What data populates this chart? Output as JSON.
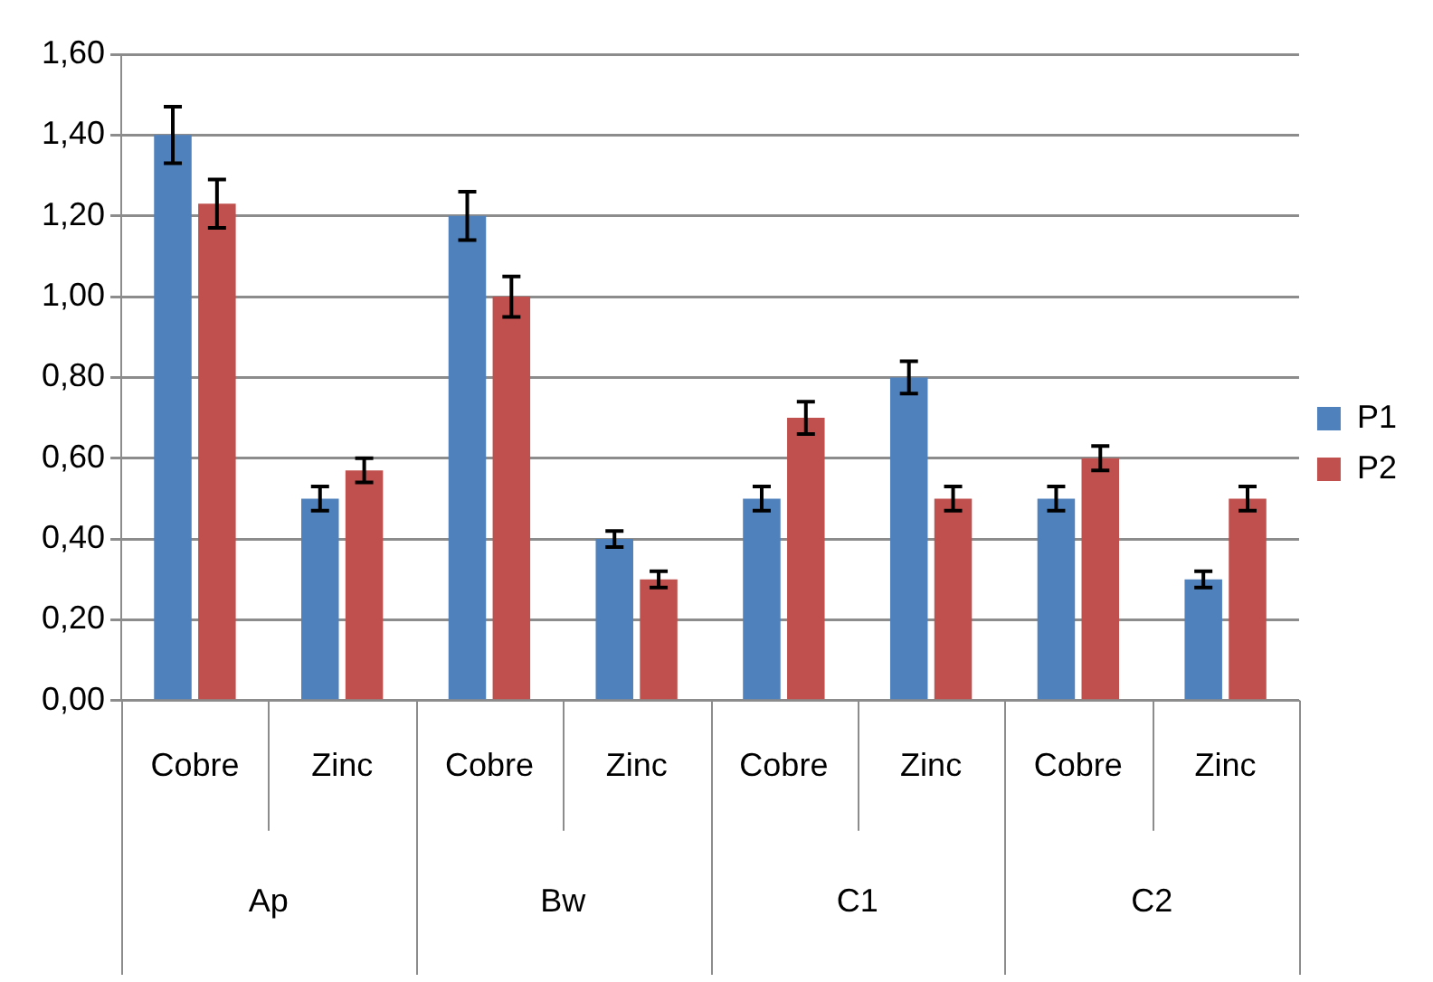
{
  "chart_data": {
    "type": "bar",
    "categories": [
      "Cobre",
      "Zinc",
      "Cobre",
      "Zinc",
      "Cobre",
      "Zinc",
      "Cobre",
      "Zinc"
    ],
    "series": [
      {
        "name": "P1",
        "color": "#4f81bd",
        "values": [
          1.4,
          0.5,
          1.2,
          0.4,
          0.5,
          0.8,
          0.5,
          0.3
        ],
        "errors": [
          0.07,
          0.03,
          0.06,
          0.02,
          0.03,
          0.04,
          0.03,
          0.02
        ]
      },
      {
        "name": "P2",
        "color": "#c0504d",
        "values": [
          1.23,
          0.57,
          1.0,
          0.3,
          0.7,
          0.5,
          0.6,
          0.5
        ],
        "errors": [
          0.06,
          0.03,
          0.05,
          0.02,
          0.04,
          0.03,
          0.03,
          0.03
        ]
      }
    ],
    "ylim": [
      0,
      1.6
    ],
    "yticks": [
      {
        "value": 0,
        "label": "0,00"
      },
      {
        "value": 0.2,
        "label": "0,20"
      },
      {
        "value": 0.4,
        "label": "0,40"
      },
      {
        "value": 0.6,
        "label": "0,60"
      },
      {
        "value": 0.8,
        "label": "0,80"
      },
      {
        "value": 1.0,
        "label": "1,00"
      },
      {
        "value": 1.2,
        "label": "1,20"
      },
      {
        "value": 1.4,
        "label": "1,40"
      },
      {
        "value": 1.6,
        "label": "1,60"
      }
    ],
    "annotations": [
      "Ap",
      "Bw",
      "C1",
      "C2"
    ],
    "grid": "y",
    "legend": "right"
  }
}
